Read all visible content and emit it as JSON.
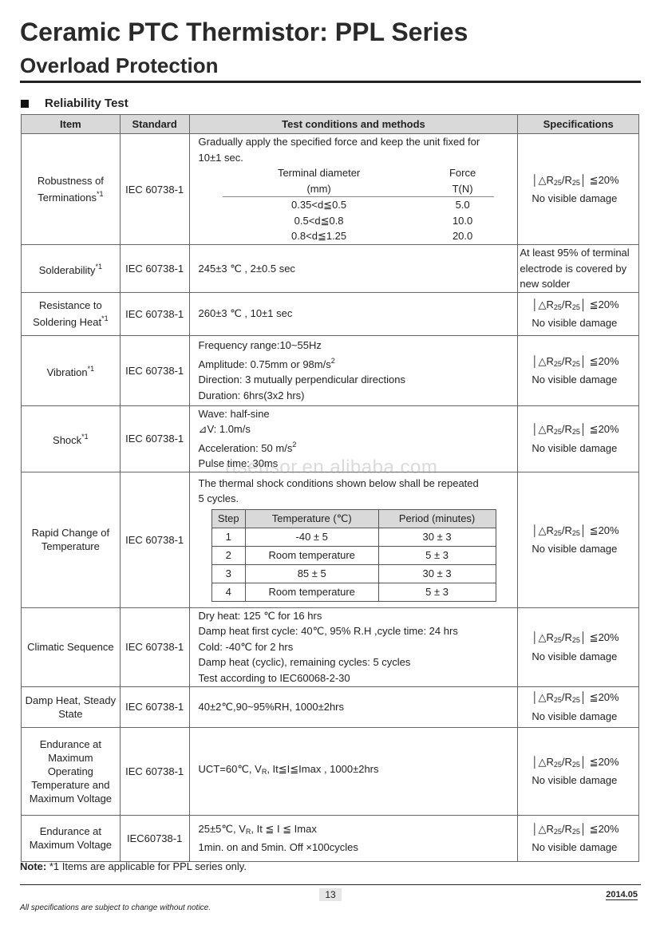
{
  "title": "Ceramic PTC Thermistor: PPL Series",
  "subtitle": "Overload Protection",
  "section": "Reliability Test",
  "headers": [
    "Item",
    "Standard",
    "Test conditions and methods",
    "Specifications"
  ],
  "spec_std": {
    "bar": "│",
    "delta": "△R",
    "sub1": "25",
    "slash": "/R",
    "sub2": "25",
    "bar2": "│",
    "limit": " ≦20%",
    "damage": "No visible damage"
  },
  "rows": [
    {
      "item": "Robustness of Terminations",
      "mark": "*1",
      "std": "IEC 60738-1",
      "h": 139,
      "lines": [
        [
          {
            "t": "Gradually apply the specified force and keep the unit fixed for"
          }
        ],
        [
          {
            "t": "10±1 sec."
          }
        ]
      ],
      "force": {
        "headers": [
          [
            "Terminal diameter",
            "Force"
          ],
          [
            "(mm)",
            "T(N)"
          ]
        ],
        "rows": [
          [
            "0.35<d≦0.5",
            "5.0"
          ],
          [
            "0.5<d≦0.8",
            "10.0"
          ],
          [
            "0.8<d≦1.25",
            "20.0"
          ]
        ]
      }
    },
    {
      "item": "Solderability",
      "mark": "*1",
      "std": "IEC 60738-1",
      "h": 59,
      "lines": [
        [
          {
            "t": "245±3 ℃ , 2±0.5 sec"
          }
        ]
      ],
      "spec_text": [
        "At least 95% of terminal",
        "electrode is covered by",
        "new solder"
      ]
    },
    {
      "item": "Resistance to Soldering Heat",
      "mark": "*1",
      "std": "IEC 60738-1",
      "h": 54,
      "lines": [
        [
          {
            "t": "260±3 ℃ , 10±1 sec"
          }
        ]
      ]
    },
    {
      "item": "Vibration",
      "mark": "*1",
      "std": "IEC 60738-1",
      "h": 88,
      "lines": [
        [
          {
            "t": "Frequency range:10~55Hz"
          }
        ],
        [
          {
            "t": "Amplitude: 0.75mm or 98m/s"
          },
          {
            "sup": "2"
          }
        ],
        [
          {
            "t": "Direction: 3 mutually perpendicular directions"
          }
        ],
        [
          {
            "t": "Duration: 6hrs(3x2 hrs)"
          }
        ]
      ]
    },
    {
      "item": "Shock",
      "mark": "*1",
      "std": "IEC 60738-1",
      "h": 79,
      "lines": [
        [
          {
            "t": "Wave: half-sine"
          }
        ],
        [
          {
            "t": "⊿V: 1.0m/s"
          }
        ],
        [
          {
            "t": "Acceleration: 50 m/s"
          },
          {
            "sup": "2"
          }
        ],
        [
          {
            "t": "Pulse time: 30ms"
          }
        ]
      ]
    },
    {
      "item": "Rapid Change of Temperature",
      "mark": "",
      "std": "IEC 60738-1",
      "h": 170,
      "lines": [
        [
          {
            "t": "The thermal shock conditions shown below shall be repeated"
          }
        ],
        [
          {
            "t": "5 cycles."
          }
        ]
      ],
      "steps": {
        "headers": [
          "Step",
          "Temperature (℃)",
          "Period (minutes)"
        ],
        "rows": [
          [
            "1",
            "-40 ± 5",
            "30 ± 3"
          ],
          [
            "2",
            "Room temperature",
            "5 ± 3"
          ],
          [
            "3",
            "85 ± 5",
            "30 ± 3"
          ],
          [
            "4",
            "Room temperature",
            "5 ± 3"
          ]
        ]
      }
    },
    {
      "item": "Climatic Sequence",
      "mark": "",
      "std": "IEC 60738-1",
      "h": 99,
      "lines": [
        [
          {
            "t": "Dry heat: 125 ℃ for 16 hrs"
          }
        ],
        [
          {
            "t": "Damp heat first cycle: 40℃, 95% R.H ,cycle time: 24 hrs"
          }
        ],
        [
          {
            "t": "Cold: -40℃ for 2 hrs"
          }
        ],
        [
          {
            "t": "Damp heat (cyclic), remaining cycles: 5 cycles"
          }
        ],
        [
          {
            "t": "Test according to IEC60068-2-30"
          }
        ]
      ]
    },
    {
      "item": "Damp Heat, Steady State",
      "mark": "",
      "std": "IEC 60738-1",
      "h": 51,
      "lines": [
        [
          {
            "t": "40±2℃,90~95%RH, 1000±2hrs"
          }
        ]
      ]
    },
    {
      "item": "Endurance at Maximum Operating Temperature and Maximum Voltage",
      "mark": "",
      "std": "IEC 60738-1",
      "h": 110,
      "lines": [
        [
          {
            "t": "UCT=60℃, V"
          },
          {
            "sub": "R"
          },
          {
            "t": ", It≦I≦Imax , 1000±2hrs"
          }
        ]
      ]
    },
    {
      "item": "Endurance at Maximum Voltage",
      "mark": "",
      "std": "IEC60738-1",
      "h": 58,
      "lines": [
        [
          {
            "t": "25±5℃, V"
          },
          {
            "sub": "R"
          },
          {
            "t": ", It ≦ I ≦ Imax"
          }
        ],
        [
          {
            "t": "1min. on and 5min. Off ×100cycles"
          }
        ]
      ]
    }
  ],
  "note_label": "Note:",
  "note_text": " *1 Items are applicable for PPL series only.",
  "page": "13",
  "date": "2014.05",
  "disclaimer": "All specifications are subject to change without notice.",
  "watermark": "rtsensor.en.alibaba.com"
}
